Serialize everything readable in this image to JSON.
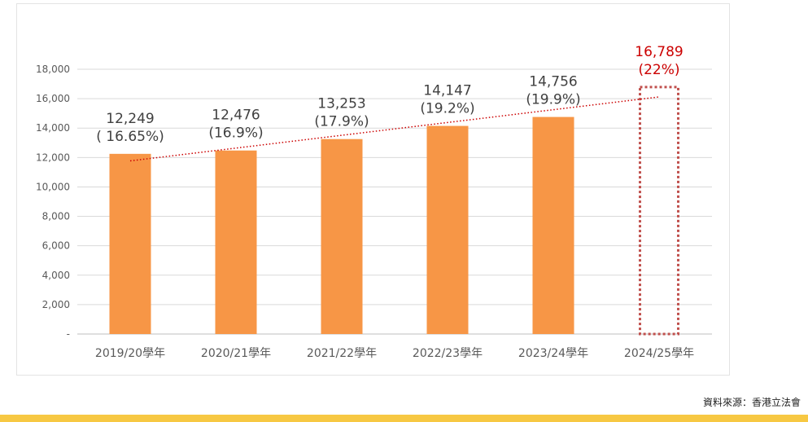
{
  "chart_data": {
    "type": "bar",
    "categories": [
      "2019/20學年",
      "2020/21學年",
      "2021/22學年",
      "2022/23學年",
      "2023/24學年",
      "2024/25學年"
    ],
    "values": [
      12249,
      12476,
      13253,
      14147,
      14756,
      16789
    ],
    "value_labels": [
      "12,249",
      "12,476",
      "13,253",
      "14,147",
      "14,756",
      "16,789"
    ],
    "percent_labels": [
      "( 16.65%)",
      "(16.9%)",
      "(17.9%)",
      "(19.2%)",
      "(19.9%)",
      "(22%)"
    ],
    "highlight_index": 5,
    "ylim": [
      0,
      18000
    ],
    "yticks": [
      0,
      2000,
      4000,
      6000,
      8000,
      10000,
      12000,
      14000,
      16000,
      18000
    ],
    "ytick_labels": [
      "-",
      "2,000",
      "4,000",
      "6,000",
      "8,000",
      "10,000",
      "12,000",
      "14,000",
      "16,000",
      "18,000"
    ],
    "trendline": true,
    "grid": "horizontal",
    "colors": {
      "bar": "#f79646",
      "highlight": "#c0504d",
      "highlight_text": "#cc0000",
      "grid": "#d9d9d9"
    }
  },
  "source_note": "資料來源：香港立法會",
  "footer": {
    "color": "#f7c843"
  }
}
